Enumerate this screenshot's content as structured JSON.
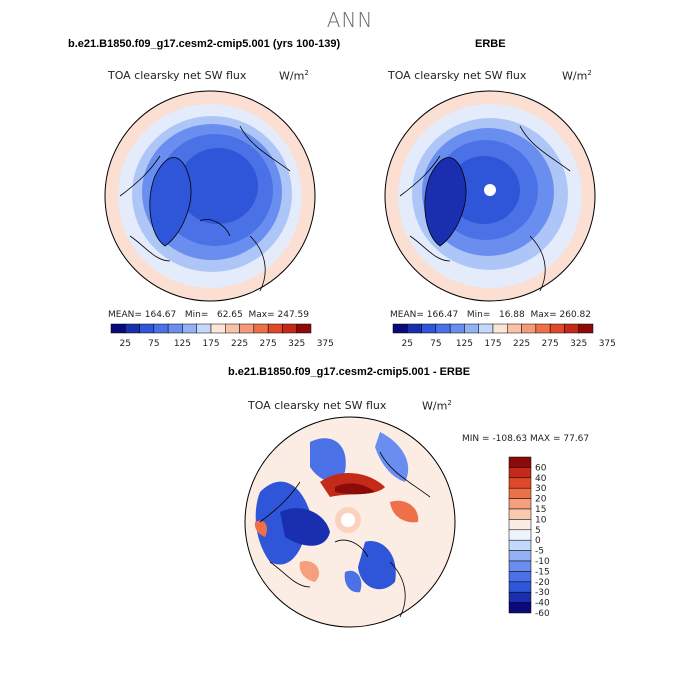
{
  "page": {
    "title": "ANN"
  },
  "panels": [
    {
      "title": "b.e21.B1850.f09_g17.cesm2-cmip5.001 (yrs 100-139)",
      "subtitle": "TOA clearsky net SW flux",
      "units": "W/m",
      "units_sup": "2",
      "stats": {
        "mean_label": "MEAN=",
        "mean": "164.67",
        "min_label": "Min=",
        "min": "62.65",
        "max_label": "Max=",
        "max": "247.59"
      }
    },
    {
      "title": "ERBE",
      "subtitle": "TOA clearsky net SW flux",
      "units": "W/m",
      "units_sup": "2",
      "stats": {
        "mean_label": "MEAN=",
        "mean": "166.47",
        "min_label": "Min=",
        "min": "16.88",
        "max_label": "Max=",
        "max": "260.82"
      }
    },
    {
      "title": "b.e21.B1850.f09_g17.cesm2-cmip5.001 - ERBE",
      "subtitle": "TOA clearsky net SW flux",
      "units": "W/m",
      "units_sup": "2",
      "stats": {
        "text": "MIN = -108.63 MAX =  77.67"
      }
    }
  ],
  "colors": {
    "abs_scale": [
      "#0a0a7a",
      "#1a2fb0",
      "#2f55d8",
      "#4a72e6",
      "#6a8ef0",
      "#93b1f5",
      "#c4d8fa",
      "#fbe4d8",
      "#f9c2a6",
      "#f59a78",
      "#ee7048",
      "#e0482a",
      "#c42a18",
      "#8c0a0a"
    ],
    "diff_scale": [
      "#0a0a7a",
      "#1a2fb0",
      "#2f55d8",
      "#4a72e6",
      "#6a8ef0",
      "#93b1f5",
      "#c4d8fa",
      "#eef3fe",
      "#fbece4",
      "#f9c9b0",
      "#f59f7d",
      "#ee7048",
      "#e0482a",
      "#c42a18",
      "#8c0a0a"
    ]
  },
  "chart_data": [
    {
      "type": "heatmap",
      "projection": "north-polar-stereographic",
      "title": "b.e21.B1850.f09_g17.cesm2-cmip5.001 (yrs 100-139)",
      "variable": "TOA clearsky net SW flux",
      "units": "W/m^2",
      "mean": 164.67,
      "min": 62.65,
      "max": 247.59,
      "colorbar_ticks": [
        "25",
        "75",
        "125",
        "175",
        "225",
        "275",
        "325",
        "375"
      ],
      "colorbar_levels": [
        25,
        50,
        75,
        100,
        125,
        150,
        175,
        200,
        225,
        250,
        275,
        300,
        325,
        350,
        375
      ]
    },
    {
      "type": "heatmap",
      "projection": "north-polar-stereographic",
      "title": "ERBE",
      "variable": "TOA clearsky net SW flux",
      "units": "W/m^2",
      "mean": 166.47,
      "min": 16.88,
      "max": 260.82,
      "colorbar_ticks": [
        "25",
        "75",
        "125",
        "175",
        "225",
        "275",
        "325",
        "375"
      ],
      "colorbar_levels": [
        25,
        50,
        75,
        100,
        125,
        150,
        175,
        200,
        225,
        250,
        275,
        300,
        325,
        350,
        375
      ]
    },
    {
      "type": "heatmap",
      "projection": "north-polar-stereographic",
      "title": "b.e21.B1850.f09_g17.cesm2-cmip5.001 - ERBE",
      "variable": "TOA clearsky net SW flux",
      "units": "W/m^2",
      "min": -108.63,
      "max": 77.67,
      "colorbar_ticks": [
        "60",
        "40",
        "30",
        "20",
        "15",
        "10",
        "5",
        "0",
        "-5",
        "-10",
        "-15",
        "-20",
        "-30",
        "-40",
        "-60"
      ]
    }
  ]
}
